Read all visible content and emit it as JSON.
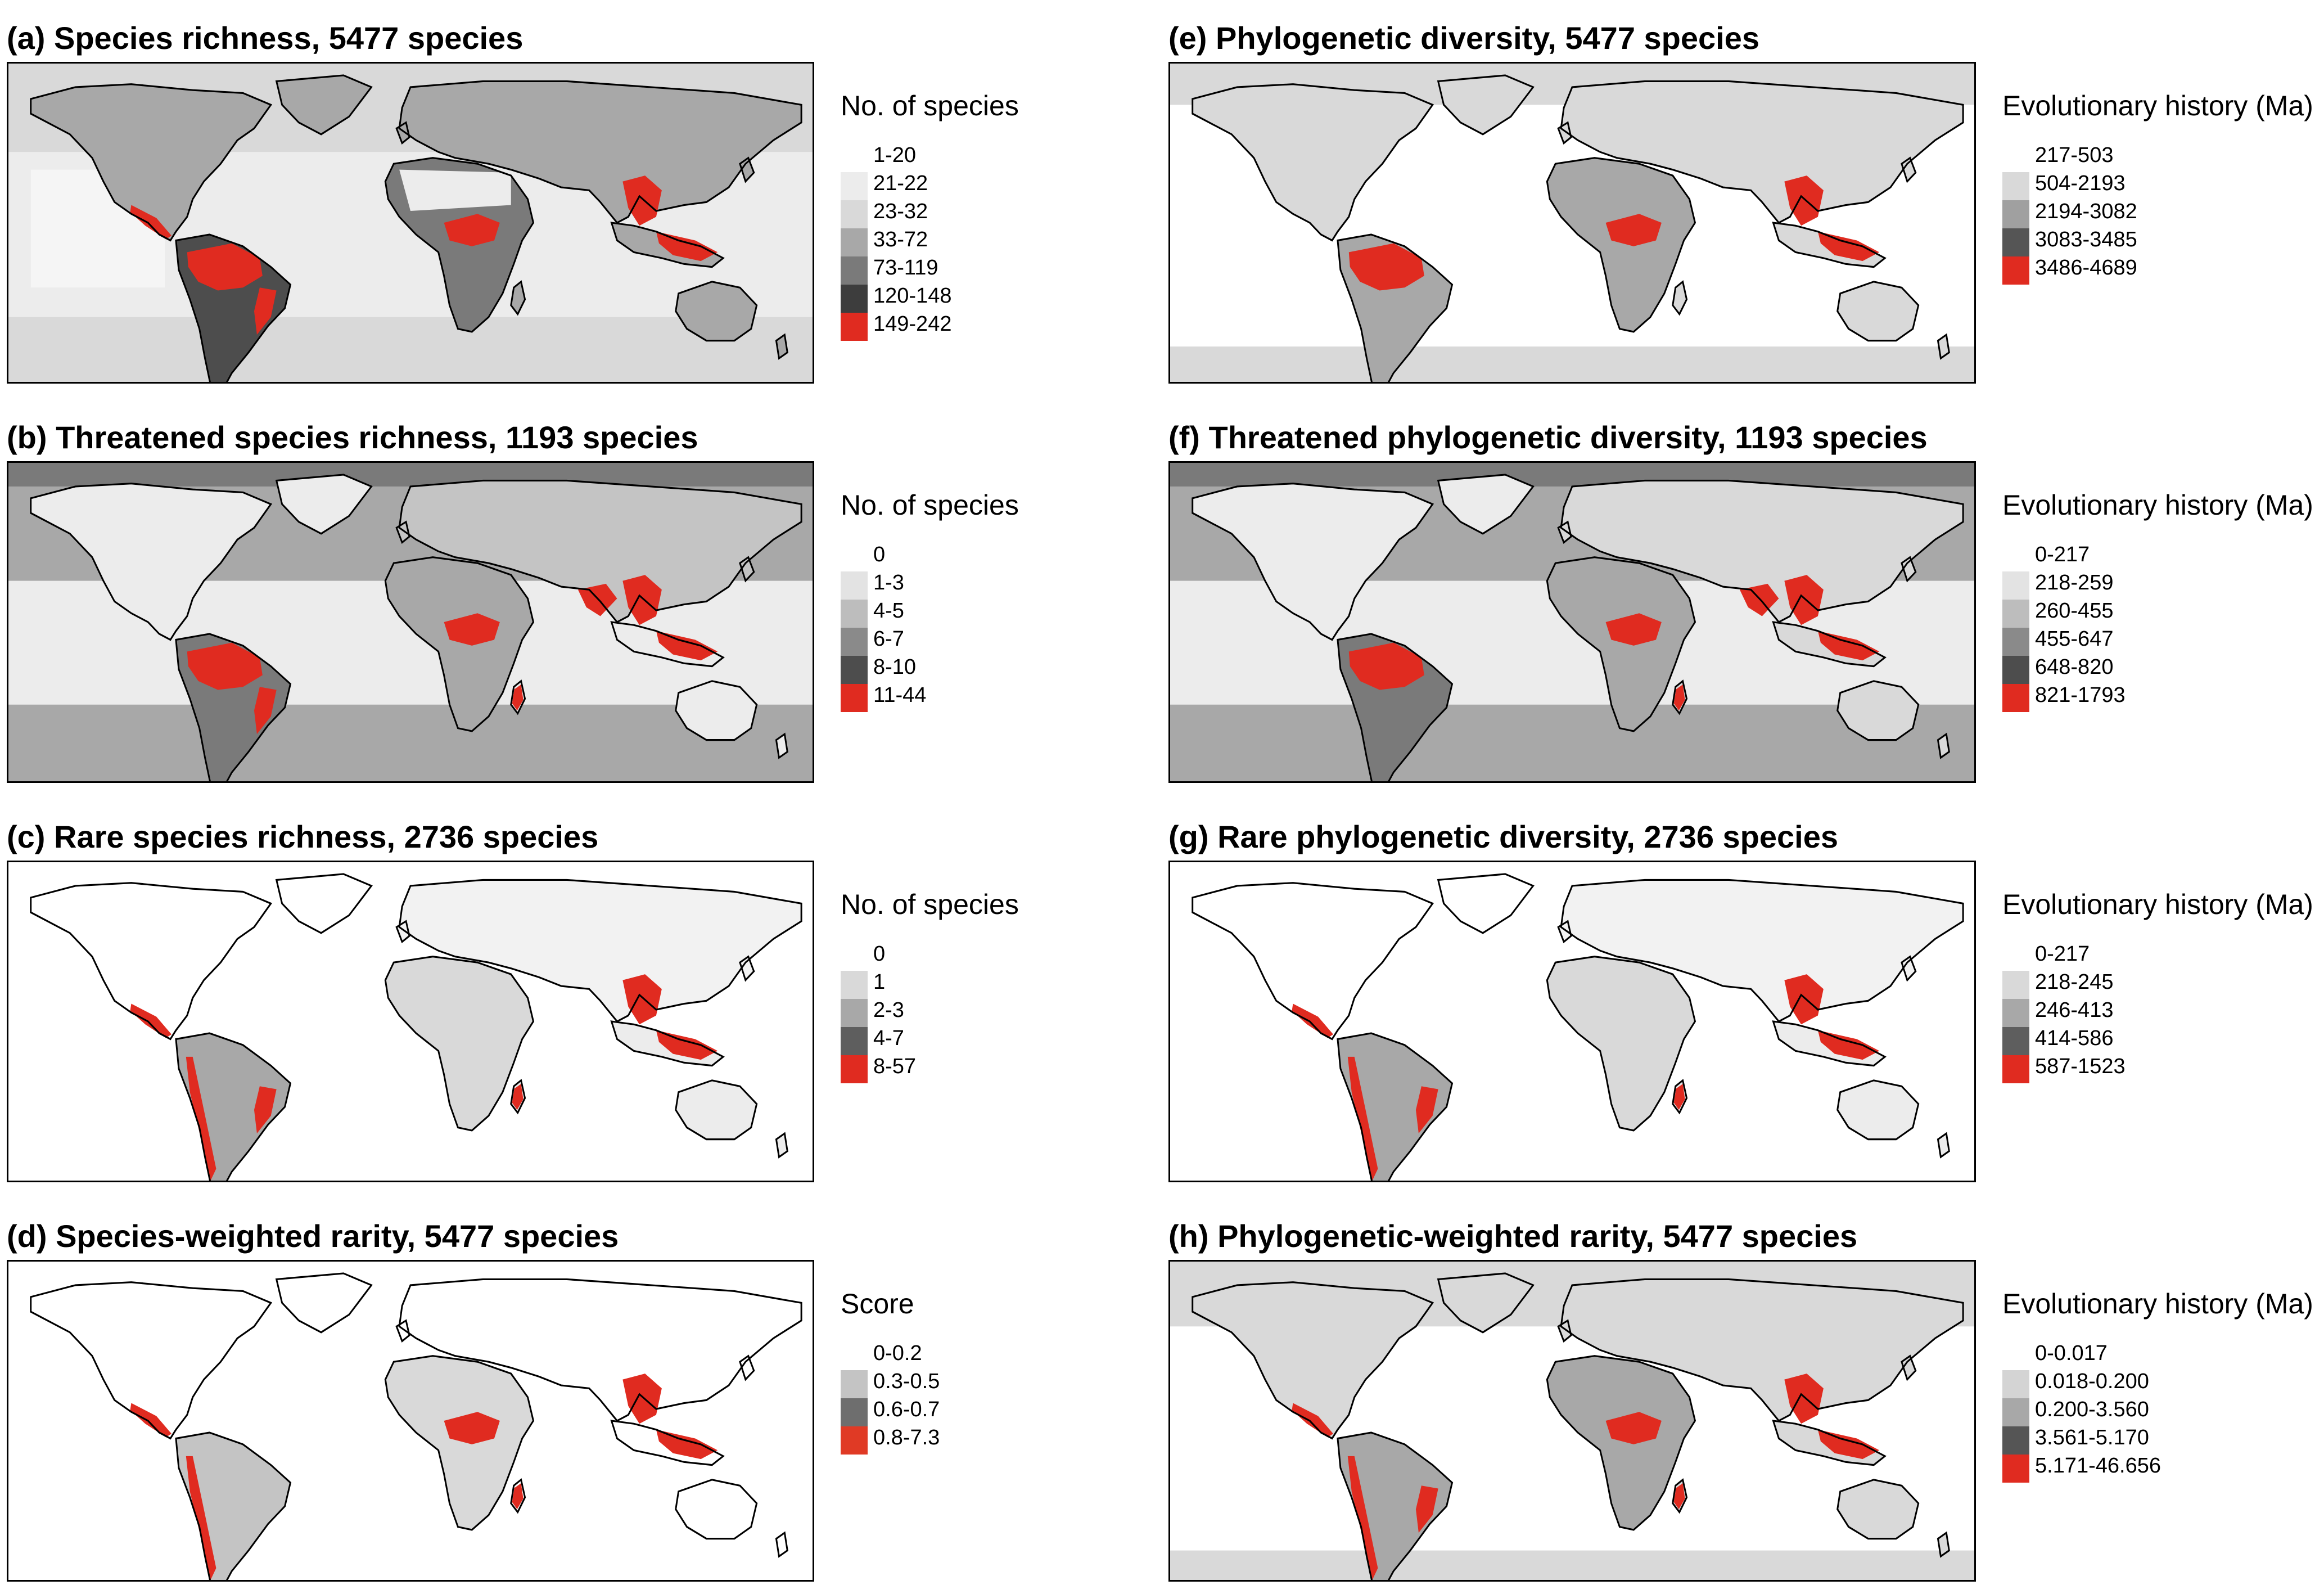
{
  "palette": {
    "very_light": "#ececec",
    "light": "#d9d9d9",
    "light_mid": "#c4c4c4",
    "mid": "#a8a8a8",
    "dark_mid": "#7a7a7a",
    "dark": "#4d4d4d",
    "red": "#e02b20",
    "ocean_white": "#ffffff",
    "outline": "#000000"
  },
  "panels": [
    {
      "id": "a",
      "title": "(a) Species richness, 5477 species",
      "legend_title": "No. of species",
      "legend": [
        {
          "label": "1-20",
          "color": "#ffffff"
        },
        {
          "label": "21-22",
          "color": "#ececec"
        },
        {
          "label": "23-32",
          "color": "#d9d9d9"
        },
        {
          "label": "33-72",
          "color": "#a8a8a8"
        },
        {
          "label": "73-119",
          "color": "#7a7a7a"
        },
        {
          "label": "120-148",
          "color": "#3d3d3d"
        },
        {
          "label": "149-242",
          "color": "#e02b20"
        }
      ]
    },
    {
      "id": "b",
      "title": "(b) Threatened species richness, 1193 species",
      "legend_title": "No. of species",
      "legend": [
        {
          "label": "0",
          "color": "#ffffff"
        },
        {
          "label": "1-3",
          "color": "#e3e3e3"
        },
        {
          "label": "4-5",
          "color": "#bdbdbd"
        },
        {
          "label": "6-7",
          "color": "#8a8a8a"
        },
        {
          "label": "8-10",
          "color": "#4d4d4d"
        },
        {
          "label": "11-44",
          "color": "#e02b20"
        }
      ]
    },
    {
      "id": "c",
      "title": "(c) Rare species richness, 2736 species",
      "legend_title": "No. of species",
      "legend": [
        {
          "label": "0",
          "color": "#ffffff"
        },
        {
          "label": "1",
          "color": "#d9d9d9"
        },
        {
          "label": "2-3",
          "color": "#a8a8a8"
        },
        {
          "label": "4-7",
          "color": "#5e5e5e"
        },
        {
          "label": "8-57",
          "color": "#e02b20"
        }
      ]
    },
    {
      "id": "d",
      "title": "(d) Species-weighted rarity, 5477 species",
      "legend_title": "Score",
      "legend": [
        {
          "label": "0-0.2",
          "color": "#ffffff"
        },
        {
          "label": "0.3-0.5",
          "color": "#c4c4c4"
        },
        {
          "label": "0.6-0.7",
          "color": "#6e6e6e"
        },
        {
          "label": "0.8-7.3",
          "color": "#e03a25"
        }
      ]
    },
    {
      "id": "e",
      "title": "(e) Phylogenetic diversity, 5477 species",
      "legend_title": "Evolutionary history (Ma)",
      "legend": [
        {
          "label": "217-503",
          "color": "#ffffff"
        },
        {
          "label": "504-2193",
          "color": "#d9d9d9"
        },
        {
          "label": "2194-3082",
          "color": "#a0a0a0"
        },
        {
          "label": "3083-3485",
          "color": "#555555"
        },
        {
          "label": "3486-4689",
          "color": "#e02b20"
        }
      ]
    },
    {
      "id": "f",
      "title": "(f) Threatened phylogenetic diversity, 1193 species",
      "legend_title": "Evolutionary history (Ma)",
      "legend": [
        {
          "label": "0-217",
          "color": "#ffffff"
        },
        {
          "label": "218-259",
          "color": "#e3e3e3"
        },
        {
          "label": "260-455",
          "color": "#bdbdbd"
        },
        {
          "label": "455-647",
          "color": "#8a8a8a"
        },
        {
          "label": "648-820",
          "color": "#4d4d4d"
        },
        {
          "label": "821-1793",
          "color": "#e02b20"
        }
      ]
    },
    {
      "id": "g",
      "title": "(g) Rare phylogenetic diversity, 2736 species",
      "legend_title": "Evolutionary history (Ma)",
      "legend": [
        {
          "label": "0-217",
          "color": "#ffffff"
        },
        {
          "label": "218-245",
          "color": "#d9d9d9"
        },
        {
          "label": "246-413",
          "color": "#a8a8a8"
        },
        {
          "label": "414-586",
          "color": "#5e5e5e"
        },
        {
          "label": "587-1523",
          "color": "#e02b20"
        }
      ]
    },
    {
      "id": "h",
      "title": "(h) Phylogenetic-weighted rarity, 5477 species",
      "legend_title": "Evolutionary history (Ma)",
      "legend": [
        {
          "label": "0-0.017",
          "color": "#ffffff"
        },
        {
          "label": "0.018-0.200",
          "color": "#d4d4d4"
        },
        {
          "label": "0.200-3.560",
          "color": "#a8a8a8"
        },
        {
          "label": "3.561-5.170",
          "color": "#555555"
        },
        {
          "label": "5.171-46.656",
          "color": "#e02b20"
        }
      ]
    }
  ]
}
